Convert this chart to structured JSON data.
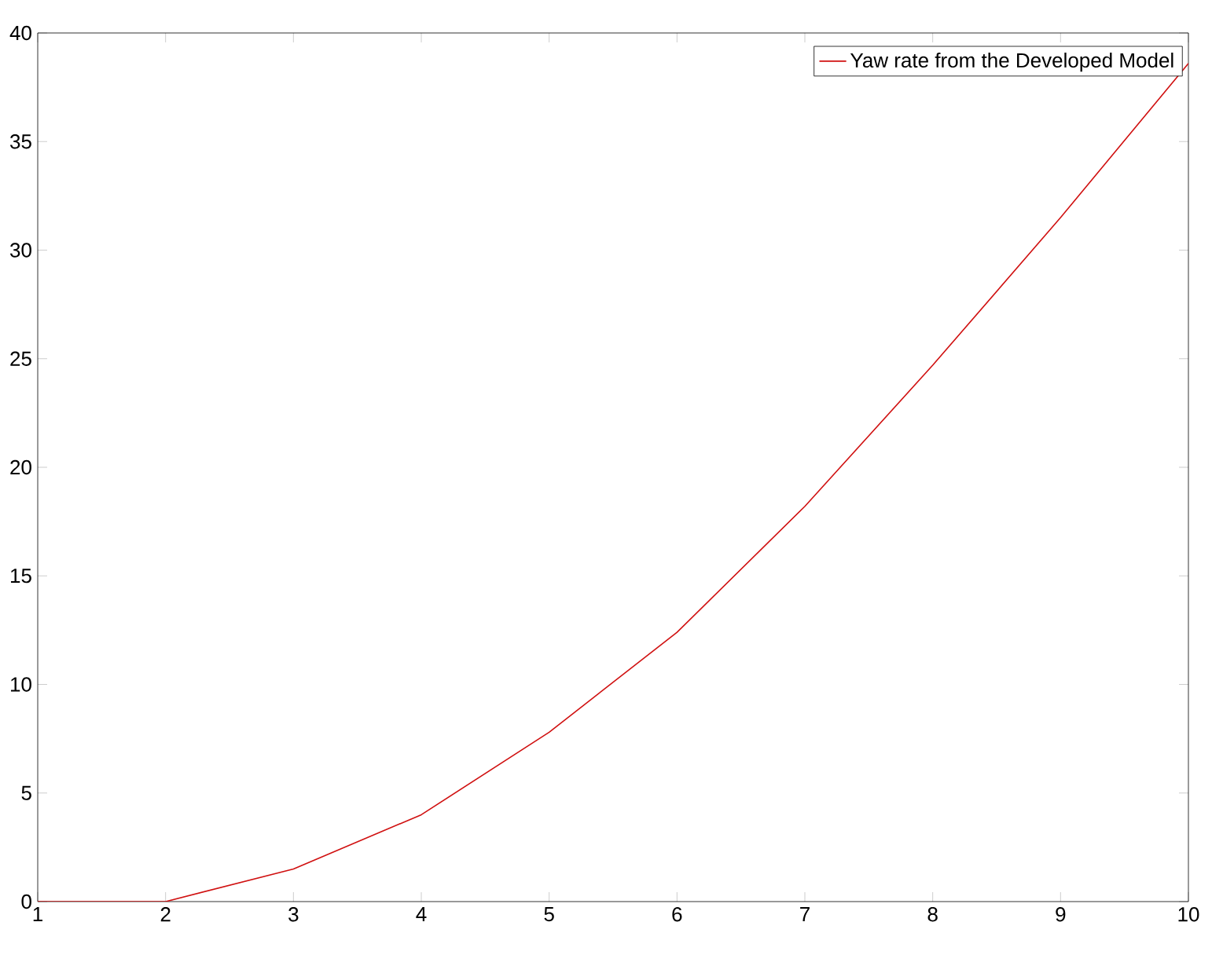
{
  "chart_data": {
    "type": "line",
    "x": [
      1,
      2,
      3,
      4,
      5,
      6,
      7,
      8,
      9,
      10
    ],
    "series": [
      {
        "name": "Yaw rate from the Developed Model",
        "color": "#d01010",
        "values": [
          0,
          0,
          1.5,
          4.0,
          7.8,
          12.4,
          18.2,
          24.7,
          31.5,
          38.6
        ]
      }
    ],
    "xlim": [
      1,
      10
    ],
    "ylim": [
      0,
      40
    ],
    "xticks": [
      1,
      2,
      3,
      4,
      5,
      6,
      7,
      8,
      9,
      10
    ],
    "yticks": [
      0,
      5,
      10,
      15,
      20,
      25,
      30,
      35,
      40
    ],
    "grid": false,
    "legend": "top right",
    "marker": "none",
    "line_style": "solid"
  }
}
